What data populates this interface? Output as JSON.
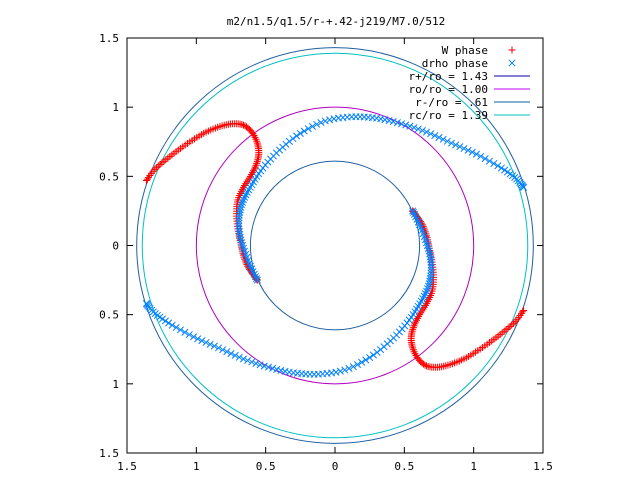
{
  "chart_data": {
    "type": "scatter",
    "title": "m2/n1.5/q1.5/r-+.42-j219/M7.0/512",
    "xlabel": "",
    "ylabel": "",
    "xlim": [
      -1.5,
      1.5
    ],
    "ylim": [
      -1.5,
      1.5
    ],
    "x_ticks": [
      -1.5,
      -1,
      -0.5,
      0,
      0.5,
      1,
      1.5
    ],
    "y_ticks": [
      -1.5,
      -1,
      -0.5,
      0,
      0.5,
      1,
      1.5
    ],
    "x_tick_labels": [
      "1.5",
      "1",
      "0.5",
      "0",
      "0.5",
      "1",
      "1.5"
    ],
    "y_tick_labels": [
      "1.5",
      "1",
      "0.5",
      "0",
      "0.5",
      "1",
      "1.5"
    ],
    "grid": false,
    "legend_position": "top-right",
    "legend": [
      {
        "label": "W phase",
        "symbol": "+",
        "color": "#ff0000"
      },
      {
        "label": "drho phase",
        "symbol": "x",
        "color": "#0080ff"
      },
      {
        "label": "r+/ro = 1.43",
        "symbol": "line",
        "color": "#0000a0"
      },
      {
        "label": "ro/ro = 1.00",
        "symbol": "line",
        "color": "#c000ff"
      },
      {
        "label": "r-/ro = .61",
        "symbol": "line",
        "color": "#1060a0"
      },
      {
        "label": "rc/ro = 1.39",
        "symbol": "line",
        "color": "#00c0c0"
      }
    ],
    "circles": [
      {
        "name": "r+/ro",
        "radius": 1.43,
        "color": "#2060a0"
      },
      {
        "name": "ro/ro",
        "radius": 1.0,
        "color": "#b000c0"
      },
      {
        "name": "r-/ro",
        "radius": 0.61,
        "color": "#2060a0"
      },
      {
        "name": "rc/ro",
        "radius": 1.39,
        "color": "#00c0c0"
      }
    ],
    "series": [
      {
        "name": "W phase",
        "marker": "plus",
        "color": "#ff0000",
        "arms": [
          [
            [
              -1.36,
              0.47
            ],
            [
              -1.3,
              0.55
            ],
            [
              -1.22,
              0.62
            ],
            [
              -1.13,
              0.69
            ],
            [
              -1.03,
              0.76
            ],
            [
              -0.93,
              0.82
            ],
            [
              -0.83,
              0.86
            ],
            [
              -0.74,
              0.88
            ],
            [
              -0.66,
              0.87
            ],
            [
              -0.6,
              0.82
            ],
            [
              -0.56,
              0.74
            ],
            [
              -0.55,
              0.66
            ],
            [
              -0.57,
              0.58
            ],
            [
              -0.61,
              0.5
            ],
            [
              -0.66,
              0.42
            ],
            [
              -0.7,
              0.33
            ],
            [
              -0.71,
              0.23
            ],
            [
              -0.7,
              0.12
            ],
            [
              -0.68,
              0.02
            ],
            [
              -0.66,
              -0.07
            ],
            [
              -0.63,
              -0.15
            ],
            [
              -0.59,
              -0.21
            ],
            [
              -0.56,
              -0.25
            ]
          ],
          [
            [
              1.36,
              -0.47
            ],
            [
              1.3,
              -0.55
            ],
            [
              1.22,
              -0.62
            ],
            [
              1.13,
              -0.69
            ],
            [
              1.03,
              -0.76
            ],
            [
              0.93,
              -0.82
            ],
            [
              0.83,
              -0.86
            ],
            [
              0.74,
              -0.88
            ],
            [
              0.66,
              -0.87
            ],
            [
              0.6,
              -0.82
            ],
            [
              0.56,
              -0.74
            ],
            [
              0.55,
              -0.66
            ],
            [
              0.57,
              -0.58
            ],
            [
              0.61,
              -0.5
            ],
            [
              0.66,
              -0.42
            ],
            [
              0.7,
              -0.33
            ],
            [
              0.71,
              -0.23
            ],
            [
              0.7,
              -0.12
            ],
            [
              0.68,
              -0.02
            ],
            [
              0.66,
              0.07
            ],
            [
              0.63,
              0.15
            ],
            [
              0.59,
              0.21
            ],
            [
              0.56,
              0.25
            ]
          ]
        ]
      },
      {
        "name": "drho phase",
        "marker": "cross",
        "color": "#0080ff",
        "arms": [
          [
            [
              -0.56,
              -0.25
            ],
            [
              -0.61,
              -0.15
            ],
            [
              -0.66,
              -0.02
            ],
            [
              -0.69,
              0.1
            ],
            [
              -0.69,
              0.22
            ],
            [
              -0.66,
              0.33
            ],
            [
              -0.6,
              0.44
            ],
            [
              -0.52,
              0.56
            ],
            [
              -0.4,
              0.69
            ],
            [
              -0.25,
              0.81
            ],
            [
              -0.07,
              0.9
            ],
            [
              0.12,
              0.93
            ],
            [
              0.3,
              0.92
            ],
            [
              0.48,
              0.88
            ],
            [
              0.66,
              0.82
            ],
            [
              0.84,
              0.74
            ],
            [
              1.02,
              0.66
            ],
            [
              1.2,
              0.56
            ],
            [
              1.31,
              0.48
            ],
            [
              1.36,
              0.42
            ]
          ],
          [
            [
              0.56,
              0.25
            ],
            [
              0.61,
              0.15
            ],
            [
              0.66,
              0.02
            ],
            [
              0.69,
              -0.1
            ],
            [
              0.69,
              -0.22
            ],
            [
              0.66,
              -0.33
            ],
            [
              0.6,
              -0.44
            ],
            [
              0.52,
              -0.56
            ],
            [
              0.4,
              -0.69
            ],
            [
              0.25,
              -0.81
            ],
            [
              0.07,
              -0.9
            ],
            [
              -0.12,
              -0.93
            ],
            [
              -0.3,
              -0.92
            ],
            [
              -0.48,
              -0.88
            ],
            [
              -0.66,
              -0.82
            ],
            [
              -0.84,
              -0.74
            ],
            [
              -1.02,
              -0.66
            ],
            [
              -1.2,
              -0.56
            ],
            [
              -1.31,
              -0.48
            ],
            [
              -1.36,
              -0.42
            ]
          ]
        ]
      }
    ]
  }
}
